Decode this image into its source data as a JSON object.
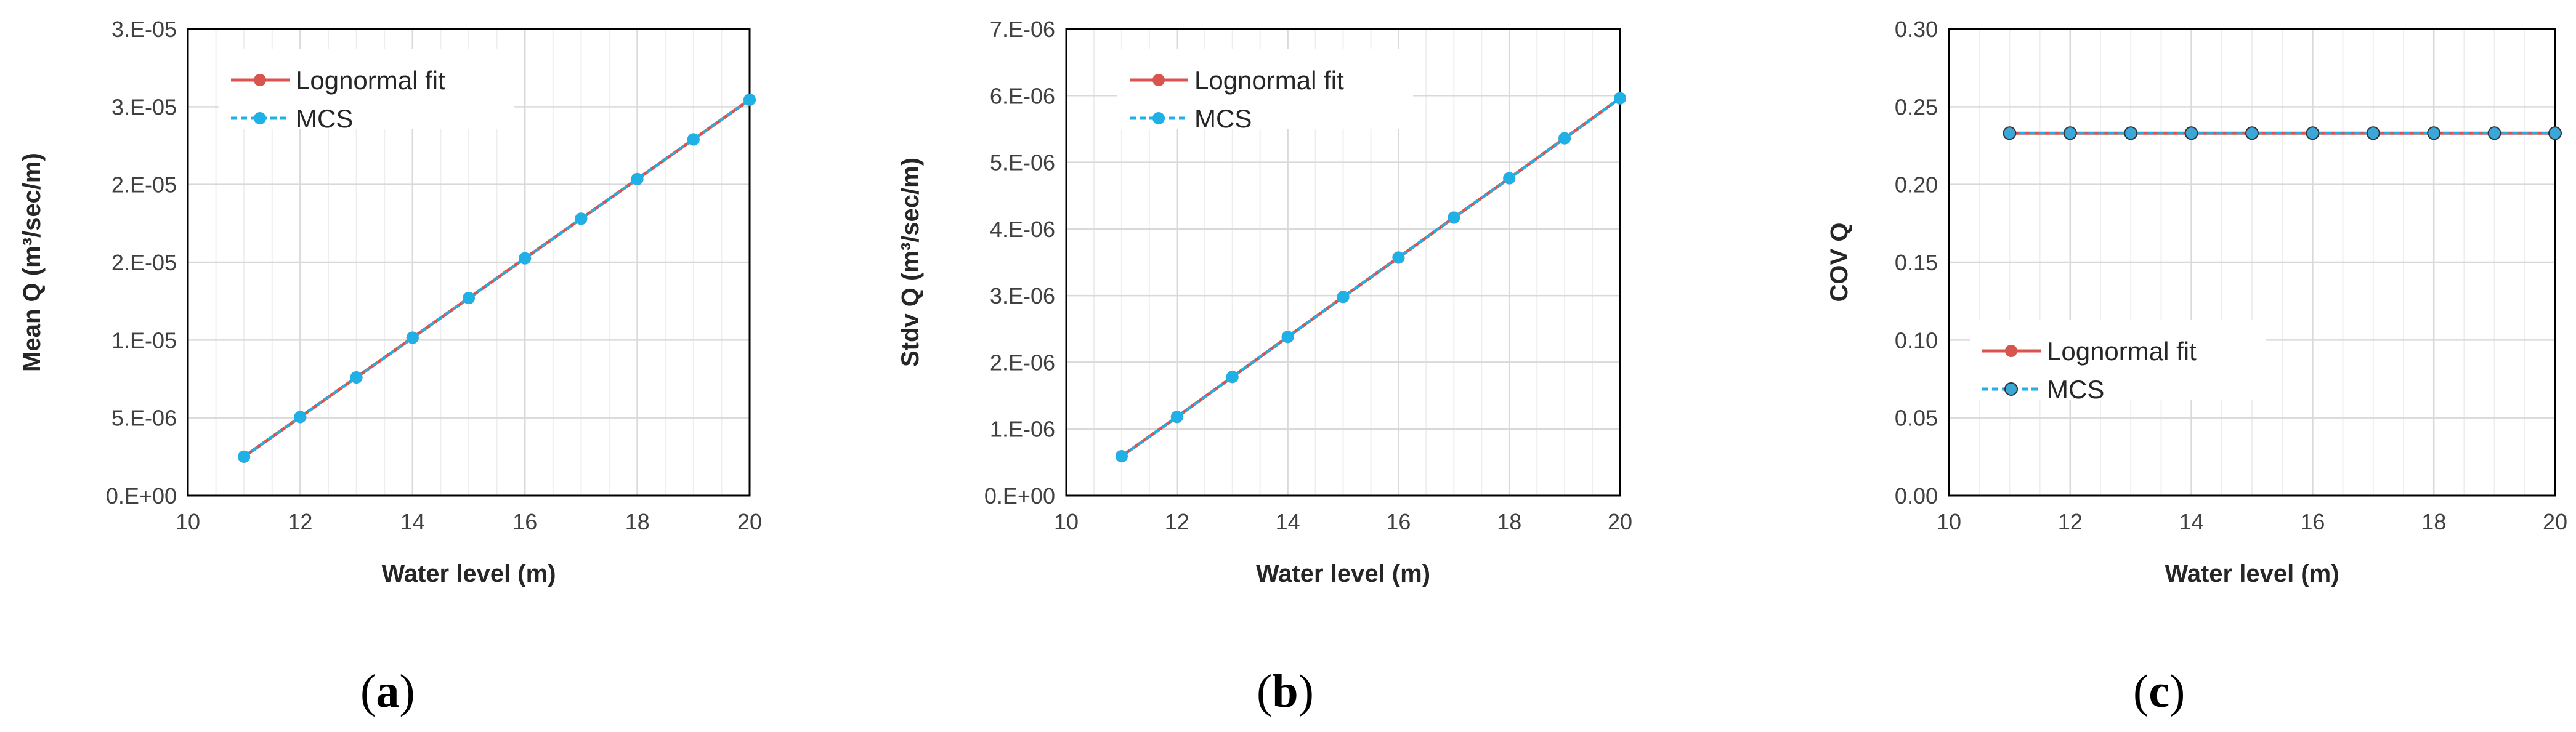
{
  "chart_data": [
    {
      "type": "line",
      "caption": "a",
      "xlabel": "Water level (m)",
      "ylabel": "Mean Q (m³/sec/m)",
      "xlim": [
        10,
        20
      ],
      "xticks": [
        10,
        12,
        14,
        16,
        18,
        20
      ],
      "ylim": [
        0,
        3e-05
      ],
      "yticks": [
        0,
        5e-06,
        1e-05,
        1.5e-05,
        2e-05,
        2.5e-05,
        3e-05
      ],
      "ytick_labels": [
        "0.E+00",
        "5.E-06",
        "1.E-05",
        "2.E-05",
        "2.E-05",
        "3.E-05",
        "3.E-05"
      ],
      "x": [
        11,
        12,
        13,
        14,
        15,
        16,
        17,
        18,
        19,
        20
      ],
      "series": [
        {
          "name": "Lognormal fit",
          "color": "#d9534f",
          "values": [
            2.5e-06,
            5.05e-06,
            7.6e-06,
            1.015e-05,
            1.27e-05,
            1.525e-05,
            1.78e-05,
            2.035e-05,
            2.29e-05,
            2.545e-05
          ]
        },
        {
          "name": "MCS",
          "color": "#1fb0e6",
          "values": [
            2.5e-06,
            5.05e-06,
            7.6e-06,
            1.015e-05,
            1.27e-05,
            1.525e-05,
            1.78e-05,
            2.035e-05,
            2.29e-05,
            2.545e-05
          ]
        }
      ],
      "legend": "top-left"
    },
    {
      "type": "line",
      "caption": "b",
      "xlabel": "Water level (m)",
      "ylabel": "Stdv Q (m³/sec/m)",
      "xlim": [
        10,
        20
      ],
      "xticks": [
        10,
        12,
        14,
        16,
        18,
        20
      ],
      "ylim": [
        0,
        7e-06
      ],
      "yticks": [
        0,
        1e-06,
        2e-06,
        3e-06,
        4e-06,
        5e-06,
        6e-06,
        7e-06
      ],
      "ytick_labels": [
        "0.E+00",
        "1.E-06",
        "2.E-06",
        "3.E-06",
        "4.E-06",
        "5.E-06",
        "6.E-06",
        "7.E-06"
      ],
      "x": [
        11,
        12,
        13,
        14,
        15,
        16,
        17,
        18,
        19,
        20
      ],
      "series": [
        {
          "name": "Lognormal fit",
          "color": "#d9534f",
          "values": [
            5.9e-07,
            1.18e-06,
            1.78e-06,
            2.38e-06,
            2.98e-06,
            3.57e-06,
            4.17e-06,
            4.76e-06,
            5.36e-06,
            5.96e-06
          ]
        },
        {
          "name": "MCS",
          "color": "#1fb0e6",
          "values": [
            5.9e-07,
            1.18e-06,
            1.78e-06,
            2.38e-06,
            2.98e-06,
            3.57e-06,
            4.17e-06,
            4.76e-06,
            5.36e-06,
            5.96e-06
          ]
        }
      ],
      "legend": "top-left"
    },
    {
      "type": "line",
      "caption": "c",
      "xlabel": "Water level (m)",
      "ylabel": "COV Q",
      "xlim": [
        10,
        20
      ],
      "xticks": [
        10,
        12,
        14,
        16,
        18,
        20
      ],
      "ylim": [
        0,
        0.3
      ],
      "yticks": [
        0,
        0.05,
        0.1,
        0.15,
        0.2,
        0.25,
        0.3
      ],
      "ytick_labels": [
        "0.00",
        "0.05",
        "0.10",
        "0.15",
        "0.20",
        "0.25",
        "0.30"
      ],
      "x": [
        11,
        12,
        13,
        14,
        15,
        16,
        17,
        18,
        19,
        20
      ],
      "series": [
        {
          "name": "Lognormal fit",
          "color": "#d9534f",
          "values": [
            0.233,
            0.233,
            0.233,
            0.233,
            0.233,
            0.233,
            0.233,
            0.233,
            0.233,
            0.233
          ]
        },
        {
          "name": "MCS",
          "color": "#1fb0e6",
          "values": [
            0.233,
            0.233,
            0.233,
            0.233,
            0.233,
            0.233,
            0.233,
            0.233,
            0.233,
            0.233
          ]
        }
      ],
      "legend": "bottom-left"
    }
  ]
}
